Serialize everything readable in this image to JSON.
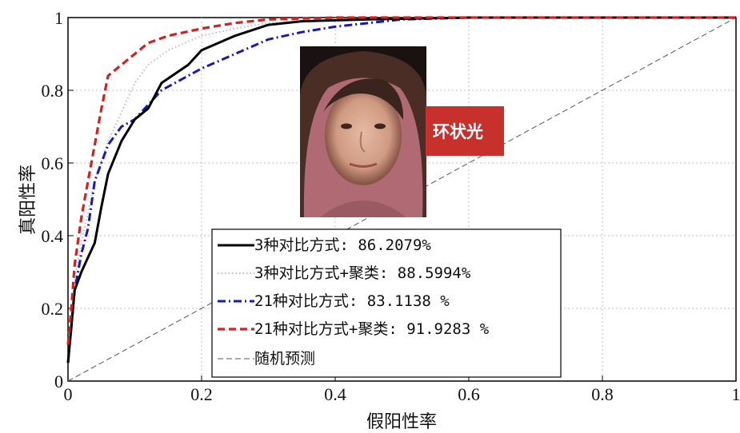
{
  "chart_data": {
    "type": "line",
    "title": "",
    "xlabel": "假阳性率",
    "ylabel": "真阳性率",
    "xlim": [
      0,
      1
    ],
    "ylim": [
      0,
      1
    ],
    "xticks": [
      "0",
      "0.2",
      "0.4",
      "0.6",
      "0.8",
      "1"
    ],
    "yticks": [
      "0",
      "0.2",
      "0.4",
      "0.6",
      "0.8",
      "1"
    ],
    "grid": true,
    "legend_position": "bottom-center",
    "annotation": "环状光",
    "series": [
      {
        "name": "3种对比方式: 86.2079%",
        "color": "#000000",
        "style": "solid",
        "points": [
          [
            0,
            0.05
          ],
          [
            0.005,
            0.15
          ],
          [
            0.01,
            0.25
          ],
          [
            0.02,
            0.3
          ],
          [
            0.03,
            0.34
          ],
          [
            0.04,
            0.38
          ],
          [
            0.05,
            0.48
          ],
          [
            0.06,
            0.57
          ],
          [
            0.08,
            0.66
          ],
          [
            0.1,
            0.72
          ],
          [
            0.12,
            0.75
          ],
          [
            0.14,
            0.82
          ],
          [
            0.18,
            0.87
          ],
          [
            0.2,
            0.91
          ],
          [
            0.25,
            0.95
          ],
          [
            0.3,
            0.98
          ],
          [
            0.35,
            0.99
          ],
          [
            0.45,
            0.995
          ],
          [
            0.6,
            1
          ],
          [
            1,
            1
          ]
        ]
      },
      {
        "name": "3种对比方式+聚类: 88.5994%",
        "color": "#b9b9d6",
        "style": "dotted",
        "points": [
          [
            0,
            0.05
          ],
          [
            0.005,
            0.18
          ],
          [
            0.01,
            0.28
          ],
          [
            0.02,
            0.38
          ],
          [
            0.04,
            0.55
          ],
          [
            0.06,
            0.66
          ],
          [
            0.08,
            0.74
          ],
          [
            0.1,
            0.82
          ],
          [
            0.12,
            0.87
          ],
          [
            0.15,
            0.91
          ],
          [
            0.2,
            0.95
          ],
          [
            0.25,
            0.97
          ],
          [
            0.3,
            0.985
          ],
          [
            0.4,
            0.995
          ],
          [
            0.6,
            1
          ],
          [
            1,
            1
          ]
        ]
      },
      {
        "name": "21种对比方式: 83.1138 %",
        "color": "#1a1ab0",
        "style": "dashdot",
        "points": [
          [
            0,
            0.05
          ],
          [
            0.005,
            0.15
          ],
          [
            0.01,
            0.25
          ],
          [
            0.02,
            0.35
          ],
          [
            0.03,
            0.42
          ],
          [
            0.04,
            0.55
          ],
          [
            0.06,
            0.65
          ],
          [
            0.08,
            0.7
          ],
          [
            0.1,
            0.72
          ],
          [
            0.12,
            0.76
          ],
          [
            0.14,
            0.8
          ],
          [
            0.18,
            0.84
          ],
          [
            0.2,
            0.86
          ],
          [
            0.25,
            0.9
          ],
          [
            0.3,
            0.94
          ],
          [
            0.35,
            0.96
          ],
          [
            0.4,
            0.975
          ],
          [
            0.45,
            0.985
          ],
          [
            0.5,
            0.995
          ],
          [
            0.6,
            1
          ],
          [
            1,
            1
          ]
        ]
      },
      {
        "name": "21种对比方式+聚类: 91.9283 %",
        "color": "#d42020",
        "style": "dashed",
        "points": [
          [
            0,
            0.1
          ],
          [
            0.005,
            0.2
          ],
          [
            0.01,
            0.32
          ],
          [
            0.02,
            0.45
          ],
          [
            0.03,
            0.55
          ],
          [
            0.04,
            0.65
          ],
          [
            0.05,
            0.75
          ],
          [
            0.06,
            0.84
          ],
          [
            0.08,
            0.87
          ],
          [
            0.1,
            0.9
          ],
          [
            0.12,
            0.93
          ],
          [
            0.15,
            0.95
          ],
          [
            0.2,
            0.97
          ],
          [
            0.25,
            0.985
          ],
          [
            0.3,
            0.995
          ],
          [
            0.4,
            1
          ],
          [
            1,
            1
          ]
        ]
      },
      {
        "name": "随机预测",
        "color": "#555555",
        "style": "thin-dashed",
        "points": [
          [
            0,
            0
          ],
          [
            1,
            1
          ]
        ]
      }
    ]
  },
  "colors": {
    "badge_background": "#c8302c",
    "axis": "#000000",
    "grid": "#bfbfbf"
  }
}
